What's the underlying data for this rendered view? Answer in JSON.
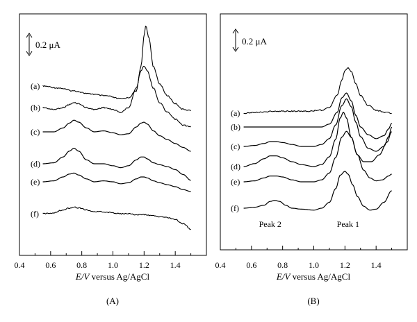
{
  "chart_data": [
    {
      "type": "line",
      "panel_label": "(A)",
      "xlabel_italic": "E/V",
      "xlabel_rest": " versus Ag/AgCl",
      "ylabel": "",
      "xlim": [
        0.4,
        1.6
      ],
      "x_ticks": [
        "0.4",
        "0.6",
        "0.8",
        "1.0",
        "1.2",
        "1.4"
      ],
      "scale_bar": "0.2 μA",
      "scale_bar_uA": 0.2,
      "grid": false,
      "annotations": [],
      "series": [
        {
          "name": "(a)",
          "baseline": 0.0,
          "noise": true,
          "x": [
            0.55,
            0.65,
            0.75,
            0.85,
            0.95,
            1.05,
            1.1,
            1.15,
            1.18,
            1.2,
            1.21,
            1.23,
            1.26,
            1.3,
            1.35,
            1.4,
            1.45,
            1.5
          ],
          "y": [
            0.0,
            -0.02,
            -0.05,
            -0.08,
            -0.1,
            -0.13,
            -0.12,
            -0.05,
            0.2,
            0.52,
            0.62,
            0.5,
            0.2,
            0.02,
            -0.1,
            -0.18,
            -0.24,
            -0.25
          ]
        },
        {
          "name": "(b)",
          "baseline": -0.2,
          "noise": true,
          "x": [
            0.55,
            0.62,
            0.68,
            0.72,
            0.75,
            0.78,
            0.83,
            0.88,
            0.94,
            1.0,
            1.05,
            1.1,
            1.15,
            1.18,
            1.2,
            1.22,
            1.26,
            1.3,
            1.35,
            1.4,
            1.45,
            1.5
          ],
          "y": [
            0.0,
            -0.02,
            0.0,
            0.03,
            0.05,
            0.04,
            0.0,
            -0.02,
            0.0,
            -0.02,
            -0.05,
            0.0,
            0.2,
            0.38,
            0.43,
            0.38,
            0.2,
            0.05,
            -0.05,
            -0.12,
            -0.18,
            -0.2
          ]
        },
        {
          "name": "(c)",
          "baseline": -0.45,
          "noise": false,
          "x": [
            0.55,
            0.62,
            0.68,
            0.72,
            0.75,
            0.78,
            0.83,
            0.88,
            0.94,
            1.0,
            1.05,
            1.1,
            1.15,
            1.18,
            1.2,
            1.22,
            1.26,
            1.3,
            1.35,
            1.4,
            1.45,
            1.5
          ],
          "y": [
            0.0,
            0.0,
            0.04,
            0.09,
            0.12,
            0.1,
            0.04,
            0.0,
            0.01,
            -0.01,
            -0.03,
            -0.02,
            0.05,
            0.09,
            0.1,
            0.08,
            0.01,
            -0.04,
            -0.08,
            -0.12,
            -0.16,
            -0.2
          ]
        },
        {
          "name": "(d)",
          "baseline": -0.7,
          "noise": false,
          "x": [
            0.55,
            0.62,
            0.68,
            0.72,
            0.75,
            0.78,
            0.83,
            0.88,
            0.94,
            1.0,
            1.05,
            1.1,
            1.15,
            1.18,
            1.2,
            1.22,
            1.26,
            1.3,
            1.35,
            1.4,
            1.45,
            1.5
          ],
          "y": [
            0.0,
            0.01,
            0.07,
            0.13,
            0.16,
            0.13,
            0.04,
            0.0,
            0.0,
            -0.02,
            -0.04,
            -0.02,
            0.04,
            0.07,
            0.07,
            0.05,
            0.01,
            -0.01,
            -0.03,
            -0.06,
            -0.11,
            -0.17
          ]
        },
        {
          "name": "(e)",
          "baseline": -0.85,
          "noise": false,
          "x": [
            0.55,
            0.62,
            0.68,
            0.72,
            0.75,
            0.78,
            0.83,
            0.88,
            0.94,
            1.0,
            1.05,
            1.1,
            1.15,
            1.18,
            1.2,
            1.22,
            1.26,
            1.3,
            1.35,
            1.4,
            1.45,
            1.5
          ],
          "y": [
            0.0,
            0.01,
            0.05,
            0.08,
            0.09,
            0.07,
            0.03,
            0.0,
            0.01,
            0.0,
            -0.02,
            -0.01,
            0.03,
            0.05,
            0.05,
            0.04,
            0.01,
            -0.01,
            -0.03,
            -0.05,
            -0.08,
            -0.1
          ]
        },
        {
          "name": "(f)",
          "baseline": -1.05,
          "noise": true,
          "x": [
            0.55,
            0.62,
            0.68,
            0.72,
            0.75,
            0.78,
            0.83,
            0.88,
            0.94,
            1.0,
            1.05,
            1.1,
            1.15,
            1.2,
            1.25,
            1.3,
            1.35,
            1.4,
            1.45,
            1.5
          ],
          "y": [
            0.0,
            0.01,
            0.04,
            0.06,
            0.07,
            0.06,
            0.04,
            0.02,
            0.02,
            0.01,
            0.0,
            0.0,
            -0.01,
            -0.01,
            -0.02,
            -0.03,
            -0.04,
            -0.06,
            -0.1,
            -0.16
          ]
        }
      ]
    },
    {
      "type": "line",
      "panel_label": "(B)",
      "xlabel_italic": "E/V",
      "xlabel_rest": " versus Ag/AgCl",
      "ylabel": "",
      "xlim": [
        0.4,
        1.6
      ],
      "x_ticks": [
        "0.4",
        "0.6",
        "0.8",
        "1.0",
        "1.2",
        "1.4"
      ],
      "scale_bar": "0.2 μA",
      "scale_bar_uA": 0.2,
      "grid": false,
      "annotations": [
        {
          "text": "Peak 2",
          "x": 0.72
        },
        {
          "text": "Peak 1",
          "x": 1.22
        }
      ],
      "series": [
        {
          "name": "(a)",
          "baseline": 0.0,
          "noise": true,
          "x": [
            0.55,
            0.65,
            0.75,
            0.85,
            0.95,
            1.05,
            1.1,
            1.15,
            1.18,
            1.2,
            1.22,
            1.24,
            1.27,
            1.3,
            1.35,
            1.4,
            1.45,
            1.5
          ],
          "y": [
            0.0,
            0.01,
            0.02,
            0.02,
            0.02,
            0.03,
            0.06,
            0.18,
            0.34,
            0.44,
            0.47,
            0.43,
            0.3,
            0.18,
            0.08,
            0.03,
            0.01,
            0.0
          ]
        },
        {
          "name": "(b)",
          "baseline": -0.1,
          "noise": false,
          "x": [
            0.55,
            0.65,
            0.75,
            0.85,
            0.95,
            1.05,
            1.1,
            1.15,
            1.18,
            1.21,
            1.24,
            1.27,
            1.3,
            1.35,
            1.4,
            1.45,
            1.48,
            1.5
          ],
          "y": [
            0.0,
            0.0,
            0.0,
            0.0,
            0.0,
            0.0,
            0.03,
            0.15,
            0.3,
            0.35,
            0.27,
            0.12,
            0.0,
            -0.08,
            -0.12,
            -0.09,
            -0.02,
            0.04
          ]
        },
        {
          "name": "(c)",
          "baseline": -0.3,
          "noise": false,
          "x": [
            0.55,
            0.62,
            0.68,
            0.72,
            0.76,
            0.8,
            0.86,
            0.92,
            1.0,
            1.05,
            1.1,
            1.14,
            1.18,
            1.21,
            1.24,
            1.27,
            1.3,
            1.35,
            1.4,
            1.45,
            1.48,
            1.5
          ],
          "y": [
            0.0,
            0.01,
            0.03,
            0.05,
            0.05,
            0.04,
            0.02,
            0.0,
            0.0,
            0.02,
            0.08,
            0.22,
            0.42,
            0.49,
            0.41,
            0.25,
            0.1,
            -0.02,
            -0.05,
            0.0,
            0.1,
            0.2
          ]
        },
        {
          "name": "(d)",
          "baseline": -0.55,
          "noise": false,
          "x": [
            0.55,
            0.62,
            0.68,
            0.72,
            0.76,
            0.8,
            0.86,
            0.92,
            1.0,
            1.05,
            1.1,
            1.14,
            1.17,
            1.19,
            1.21,
            1.24,
            1.28,
            1.32,
            1.37,
            1.42,
            1.47,
            1.5
          ],
          "y": [
            0.0,
            0.03,
            0.08,
            0.11,
            0.11,
            0.09,
            0.05,
            0.02,
            0.0,
            0.02,
            0.1,
            0.28,
            0.5,
            0.56,
            0.5,
            0.3,
            0.12,
            0.05,
            0.05,
            0.12,
            0.25,
            0.36
          ]
        },
        {
          "name": "(e)",
          "baseline": -0.75,
          "noise": false,
          "x": [
            0.55,
            0.62,
            0.68,
            0.72,
            0.76,
            0.8,
            0.86,
            0.92,
            1.0,
            1.05,
            1.1,
            1.14,
            1.18,
            1.21,
            1.24,
            1.28,
            1.32,
            1.36,
            1.4,
            1.44,
            1.48,
            1.5
          ],
          "y": [
            0.0,
            0.01,
            0.04,
            0.06,
            0.06,
            0.05,
            0.02,
            0.0,
            0.0,
            0.02,
            0.09,
            0.25,
            0.46,
            0.52,
            0.46,
            0.28,
            0.12,
            0.04,
            0.01,
            0.02,
            0.06,
            0.08
          ]
        },
        {
          "name": "(f)",
          "baseline": -0.95,
          "noise": false,
          "x": [
            0.55,
            0.62,
            0.68,
            0.72,
            0.75,
            0.78,
            0.82,
            0.86,
            0.92,
            1.0,
            1.05,
            1.1,
            1.14,
            1.17,
            1.2,
            1.22,
            1.25,
            1.28,
            1.32,
            1.36,
            1.4,
            1.45,
            1.5
          ],
          "y": [
            0.0,
            0.01,
            0.03,
            0.07,
            0.08,
            0.07,
            0.03,
            0.0,
            -0.01,
            -0.02,
            0.0,
            0.06,
            0.2,
            0.34,
            0.38,
            0.35,
            0.24,
            0.12,
            0.02,
            -0.02,
            -0.01,
            0.06,
            0.18
          ]
        }
      ]
    }
  ]
}
